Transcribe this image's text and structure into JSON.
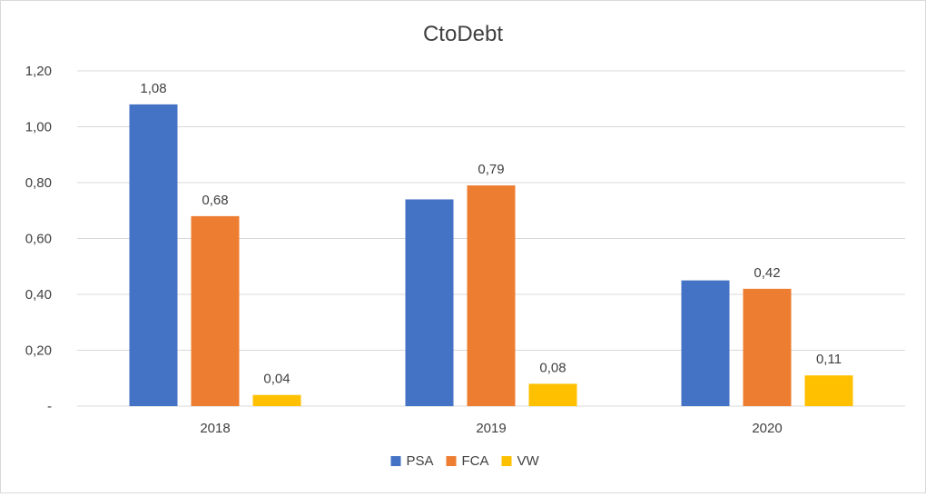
{
  "chart_data": {
    "type": "bar",
    "title": "CtoDebt",
    "categories": [
      "2018",
      "2019",
      "2020"
    ],
    "series": [
      {
        "name": "PSA",
        "color": "#4472c4",
        "values": [
          1.08,
          0.74,
          0.45
        ],
        "labels": [
          "1,08",
          "",
          ""
        ]
      },
      {
        "name": "FCA",
        "color": "#ed7d31",
        "values": [
          0.68,
          0.79,
          0.42
        ],
        "labels": [
          "0,68",
          "0,79",
          "0,42"
        ]
      },
      {
        "name": "VW",
        "color": "#ffc000",
        "values": [
          0.04,
          0.08,
          0.11
        ],
        "labels": [
          "0,04",
          "0,08",
          "0,11"
        ]
      }
    ],
    "ylim": [
      0,
      1.2
    ],
    "yticks": [
      0,
      0.2,
      0.4,
      0.6,
      0.8,
      1.0,
      1.2
    ],
    "ytick_labels": [
      "-",
      "0,20",
      "0,40",
      "0,60",
      "0,80",
      "1,00",
      "1,20"
    ],
    "grid": true,
    "legend_position": "bottom"
  }
}
